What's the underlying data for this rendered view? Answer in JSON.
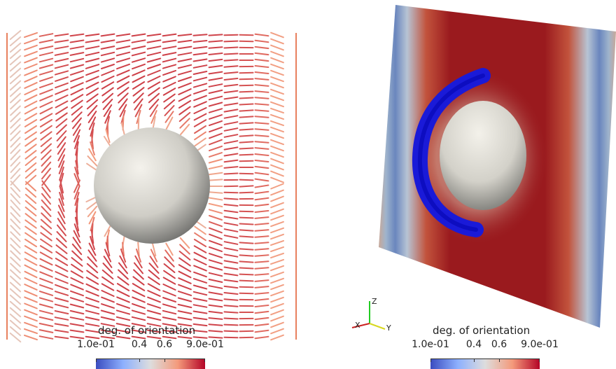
{
  "left_panel": {
    "colorbar": {
      "title": "deg. of orientation",
      "tick_labels": [
        "1.0e-01",
        "0.4",
        "0.6",
        "9.0e-01"
      ]
    }
  },
  "right_panel": {
    "colorbar": {
      "title": "deg. of orientation",
      "tick_labels": [
        "1.0e-01",
        "0.4",
        "0.6",
        "9.0e-01"
      ]
    },
    "axes_triad": {
      "labels": [
        "Z",
        "X",
        "Y"
      ],
      "colors": [
        "#22cc22",
        "#cc2222",
        "#d8d820"
      ]
    }
  },
  "colormap": {
    "stops": [
      "#3b4cc0",
      "#8db0fe",
      "#dddddd",
      "#f49a7b",
      "#b40426"
    ]
  }
}
